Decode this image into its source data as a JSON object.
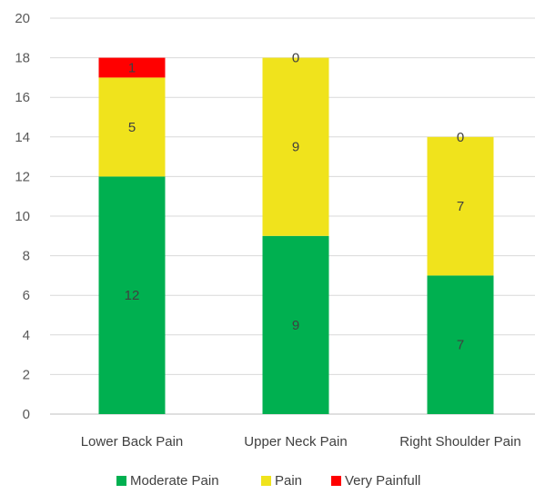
{
  "chart_data": {
    "type": "bar",
    "stacked": true,
    "categories": [
      "Lower Back Pain",
      "Upper Neck Pain",
      "Right Shoulder Pain"
    ],
    "series": [
      {
        "name": "Moderate Pain",
        "values": [
          12,
          9,
          7
        ],
        "color": "#00b050"
      },
      {
        "name": "Pain",
        "values": [
          5,
          9,
          7
        ],
        "color": "#f0e31c"
      },
      {
        "name": "Very Painfull",
        "values": [
          1,
          0,
          0
        ],
        "color": "#ff0000"
      }
    ],
    "ylim": [
      0,
      20
    ],
    "yticks": [
      0,
      2,
      4,
      6,
      8,
      10,
      12,
      14,
      16,
      18,
      20
    ],
    "grid": true,
    "legend": "bottom",
    "data_labels": true
  }
}
